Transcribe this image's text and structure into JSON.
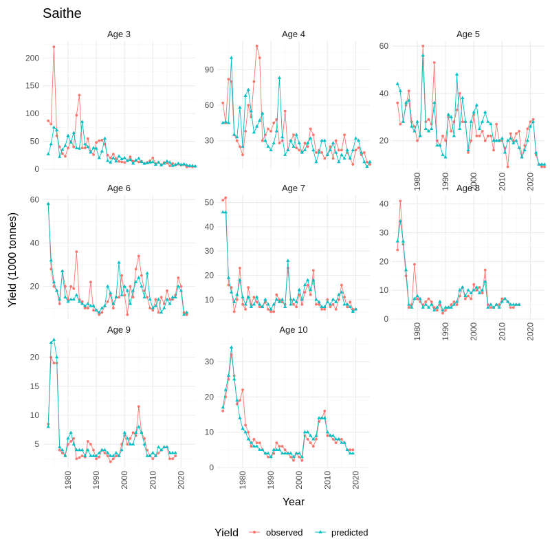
{
  "chart_data": {
    "type": "line",
    "title": "Saithe",
    "xlabel": "Year",
    "ylabel": "Yield (1000 tonnes)",
    "x_ticks": [
      1980,
      1990,
      2000,
      2010,
      2020
    ],
    "legend": {
      "title": "Yield",
      "position": "bottom",
      "entries": [
        "observed",
        "predicted"
      ]
    },
    "colors": {
      "observed": "#F8766D",
      "predicted": "#00BFC4"
    },
    "years_start": 1973,
    "panels": [
      {
        "label": "Age 3",
        "ylim": [
          0,
          230
        ],
        "yticks": [
          0,
          50,
          100,
          150,
          200
        ],
        "observed": [
          87,
          81,
          220,
          60,
          40,
          28,
          23,
          38,
          50,
          40,
          97,
          133,
          38,
          38,
          55,
          32,
          26,
          48,
          51,
          52,
          45,
          25,
          20,
          27,
          19,
          14,
          13,
          12,
          15,
          22,
          14,
          15,
          13,
          14,
          10,
          12,
          15,
          20,
          10,
          12,
          8,
          12,
          11,
          6,
          10,
          7,
          9,
          7,
          8,
          4,
          5,
          4,
          5
        ],
        "predicted": [
          27,
          45,
          75,
          70,
          22,
          35,
          42,
          60,
          48,
          65,
          38,
          37,
          85,
          45,
          40,
          30,
          38,
          37,
          20,
          32,
          55,
          15,
          12,
          20,
          14,
          23,
          18,
          20,
          15,
          17,
          10,
          16,
          19,
          13,
          10,
          11,
          12,
          13,
          8,
          12,
          7,
          10,
          14,
          12,
          6,
          8,
          10,
          8,
          9,
          7,
          6,
          6,
          5
        ]
      },
      {
        "label": "Age 4",
        "ylim": [
          6,
          114
        ],
        "yticks": [
          30,
          60,
          90
        ],
        "observed": [
          62,
          45,
          82,
          80,
          35,
          30,
          25,
          18,
          38,
          60,
          50,
          80,
          110,
          100,
          30,
          35,
          40,
          38,
          45,
          48,
          28,
          30,
          55,
          22,
          30,
          35,
          24,
          22,
          20,
          28,
          25,
          40,
          35,
          20,
          22,
          20,
          15,
          18,
          25,
          15,
          30,
          22,
          22,
          35,
          20,
          15,
          10,
          22,
          24,
          18,
          20,
          12,
          10
        ],
        "predicted": [
          45,
          46,
          45,
          100,
          35,
          33,
          58,
          25,
          68,
          73,
          55,
          37,
          42,
          47,
          53,
          30,
          25,
          22,
          28,
          38,
          83,
          33,
          18,
          22,
          30,
          25,
          35,
          28,
          20,
          22,
          28,
          32,
          22,
          12,
          20,
          30,
          30,
          18,
          22,
          28,
          20,
          12,
          18,
          15,
          22,
          15,
          22,
          32,
          30,
          20,
          12,
          8,
          12
        ]
      },
      {
        "label": "Age 5",
        "ylim": [
          8,
          62
        ],
        "yticks": [
          20,
          40,
          60
        ],
        "observed": [
          36,
          27,
          28,
          35,
          41,
          28,
          26,
          20,
          22,
          60,
          28,
          29,
          27,
          53,
          20,
          18,
          22,
          20,
          30,
          24,
          28,
          33,
          40,
          28,
          28,
          15,
          20,
          31,
          22,
          22,
          24,
          20,
          22,
          22,
          16,
          27,
          20,
          20,
          17,
          9,
          23,
          20,
          23,
          24,
          13,
          18,
          25,
          28,
          29,
          14,
          10,
          9,
          9
        ],
        "predicted": [
          44,
          41,
          28,
          36,
          37,
          26,
          24,
          28,
          22,
          56,
          25,
          24,
          25,
          36,
          18,
          18,
          14,
          13,
          31,
          30,
          22,
          48,
          25,
          38,
          28,
          16,
          28,
          32,
          35,
          25,
          28,
          32,
          28,
          27,
          20,
          20,
          20,
          21,
          15,
          20,
          21,
          19,
          20,
          17,
          13,
          16,
          20,
          26,
          28,
          15,
          10,
          10,
          10
        ]
      },
      {
        "label": "Age 6",
        "ylim": [
          5,
          62
        ],
        "yticks": [
          20,
          40,
          60
        ],
        "observed": [
          58,
          28,
          20,
          18,
          12,
          27,
          20,
          14,
          20,
          19,
          36,
          14,
          13,
          10,
          10,
          22,
          9,
          9,
          7,
          8,
          11,
          13,
          16,
          10,
          15,
          15,
          25,
          16,
          7,
          20,
          15,
          28,
          34,
          25,
          18,
          15,
          10,
          9,
          14,
          8,
          15,
          12,
          18,
          14,
          14,
          16,
          24,
          20,
          8,
          7
        ],
        "predicted": [
          58,
          32,
          22,
          18,
          14,
          27,
          15,
          13,
          14,
          14,
          16,
          13,
          12,
          11,
          12,
          11,
          11,
          9,
          8,
          10,
          11,
          20,
          17,
          12,
          15,
          31,
          16,
          20,
          18,
          12,
          18,
          22,
          24,
          20,
          15,
          26,
          14,
          10,
          11,
          14,
          8,
          10,
          14,
          12,
          15,
          15,
          20,
          18,
          7,
          8
        ]
      },
      {
        "label": "Age 7",
        "ylim": [
          2,
          53
        ],
        "yticks": [
          10,
          20,
          30,
          40,
          50
        ],
        "observed": [
          51,
          52,
          16,
          15,
          5,
          10,
          23,
          8,
          6,
          15,
          8,
          11,
          9,
          7,
          7,
          9,
          6,
          5,
          5,
          12,
          10,
          9,
          8,
          23,
          10,
          8,
          7,
          12,
          8,
          13,
          16,
          12,
          22,
          8,
          8,
          6,
          6,
          10,
          7,
          8,
          6,
          10,
          16,
          11,
          7,
          9,
          6,
          6
        ],
        "predicted": [
          46,
          46,
          19,
          13,
          9,
          12,
          18,
          11,
          8,
          11,
          7,
          8,
          11,
          8,
          7,
          10,
          8,
          6,
          8,
          10,
          9,
          10,
          7,
          26,
          8,
          10,
          9,
          14,
          10,
          16,
          18,
          14,
          18,
          10,
          9,
          7,
          7,
          9,
          8,
          10,
          9,
          12,
          13,
          8,
          8,
          7,
          5,
          6
        ]
      },
      {
        "label": "Age 8",
        "ylim": [
          0,
          43
        ],
        "yticks": [
          0,
          10,
          20,
          30,
          40
        ],
        "observed": [
          24,
          41,
          26,
          15,
          4,
          5,
          19,
          7,
          6,
          5,
          6,
          7,
          6,
          4,
          3,
          5,
          2,
          3,
          4,
          5,
          6,
          5,
          8,
          11,
          7,
          8,
          7,
          12,
          10,
          11,
          9,
          17,
          5,
          4,
          4,
          5,
          5,
          7,
          7,
          6,
          4,
          4,
          5,
          5
        ],
        "predicted": [
          27,
          34,
          27,
          17,
          5,
          4,
          7,
          8,
          7,
          4,
          5,
          4,
          5,
          3,
          4,
          6,
          3,
          4,
          4,
          4,
          5,
          6,
          10,
          11,
          8,
          10,
          9,
          10,
          11,
          9,
          10,
          13,
          4,
          5,
          4,
          5,
          4,
          6,
          7,
          6,
          5,
          5,
          5,
          5
        ]
      },
      {
        "label": "Age 9",
        "ylim": [
          1,
          23.5
        ],
        "yticks": [
          5,
          10,
          15,
          20
        ],
        "observed": [
          8.5,
          20,
          19,
          19,
          4,
          3.5,
          3,
          5,
          5.5,
          6,
          2.5,
          2.7,
          3,
          2.8,
          5.5,
          5,
          4,
          2.5,
          2.8,
          4,
          3.5,
          3,
          2,
          2.5,
          3,
          3,
          5,
          6.5,
          5,
          6,
          7,
          6.5,
          11.5,
          7,
          6,
          4,
          3,
          2.5,
          3,
          3.5,
          4,
          4.5,
          4.5,
          2.5,
          2.5,
          3
        ],
        "predicted": [
          8,
          22.5,
          23,
          20,
          4.5,
          4,
          3,
          6,
          7,
          5,
          4,
          4,
          4,
          3,
          4,
          3,
          3,
          3,
          3.5,
          4,
          4,
          3.5,
          3,
          3,
          3.5,
          3,
          4,
          7,
          6,
          5,
          5,
          7,
          8,
          7,
          5,
          3,
          3,
          3.5,
          3,
          4.5,
          4,
          4.5,
          4.5,
          3.5,
          3.5,
          3.5
        ]
      },
      {
        "label": "Age 10",
        "ylim": [
          0,
          37
        ],
        "yticks": [
          0,
          10,
          20,
          30
        ],
        "observed": [
          16,
          20,
          25,
          32,
          26,
          18,
          19,
          22,
          12,
          10,
          6,
          8,
          7,
          7,
          5,
          4,
          3,
          3,
          4,
          7,
          6,
          6,
          5,
          4,
          3,
          2,
          4,
          3,
          2,
          9,
          8,
          7,
          6,
          8,
          13,
          14,
          16,
          9,
          9,
          8,
          7,
          8,
          8,
          7,
          5,
          5,
          5
        ],
        "predicted": [
          17,
          22,
          26,
          34,
          25,
          19,
          14,
          11,
          10,
          8,
          7,
          6,
          6,
          5,
          5,
          4,
          4,
          3,
          5,
          5,
          5,
          4,
          4,
          4,
          4,
          3,
          4,
          4,
          3,
          10,
          10,
          9,
          8,
          9,
          14,
          14,
          14,
          10,
          9,
          9,
          8,
          8,
          7,
          7,
          5,
          4,
          4
        ]
      }
    ]
  }
}
